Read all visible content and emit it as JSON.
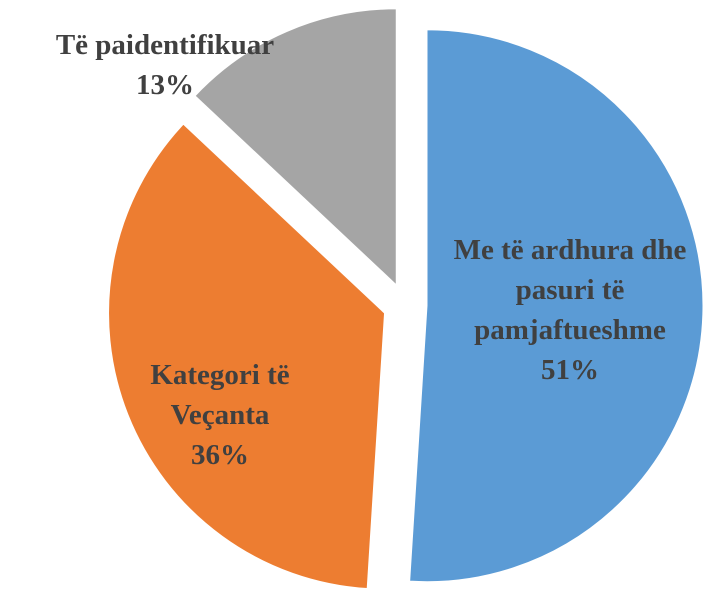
{
  "chart_data": {
    "type": "pie",
    "categories": [
      "Me të ardhura dhe pasuri të pamjaftueshme",
      "Kategori të Veçanta",
      "Të paidentifikuar"
    ],
    "values": [
      51,
      36,
      13
    ],
    "value_labels": [
      "51%",
      "36%",
      "13%"
    ],
    "colors": [
      "#5b9bd5",
      "#ed7d31",
      "#a5a5a5"
    ],
    "exploded": true
  }
}
